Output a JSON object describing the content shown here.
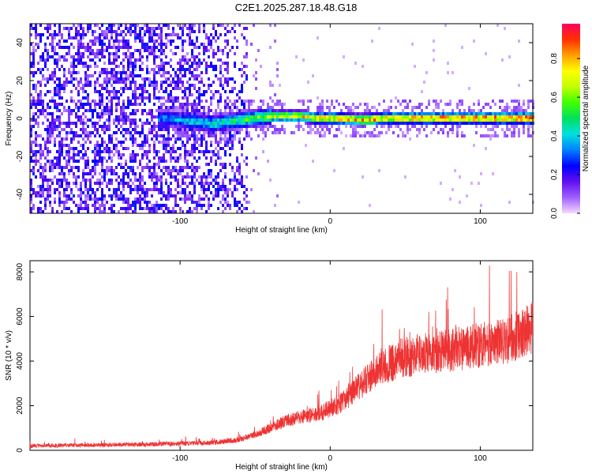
{
  "title": "C2E1.2025.287.18.48.G18",
  "chart_data": [
    {
      "type": "heatmap",
      "xlabel": "Height of straight line (km)",
      "ylabel": "Frequency (Hz)",
      "xlim": [
        -200,
        135
      ],
      "ylim": [
        -50,
        50
      ],
      "xticks": [
        -100,
        0,
        100
      ],
      "yticks": [
        -40,
        -20,
        0,
        20,
        40
      ],
      "colorbar": {
        "label": "Normalized spectral amplitude",
        "range": [
          0,
          0.98
        ],
        "ticks": [
          0.0,
          0.2,
          0.4,
          0.6,
          0.8
        ],
        "colormap": [
          "#f4d8ff",
          "#a060ff",
          "#6010f0",
          "#0000ff",
          "#0080ff",
          "#00e0e0",
          "#00e060",
          "#40ff00",
          "#c0ff00",
          "#ffff00",
          "#ffa000",
          "#ff3000",
          "#ff0060"
        ]
      },
      "signal_track": {
        "x": [
          -110,
          -100,
          -90,
          -80,
          -70,
          -60,
          -50,
          -40,
          -30,
          -20,
          -10,
          0,
          20,
          40,
          60,
          80,
          100,
          120,
          135
        ],
        "y": [
          1,
          0,
          -1,
          -2,
          -1,
          0,
          1,
          2,
          2,
          2,
          1,
          1,
          0,
          1,
          1,
          1,
          1,
          1,
          1
        ],
        "amplitude": [
          0.35,
          0.4,
          0.45,
          0.45,
          0.5,
          0.55,
          0.6,
          0.7,
          0.75,
          0.8,
          0.8,
          0.82,
          0.85,
          0.85,
          0.88,
          0.88,
          0.9,
          0.9,
          0.9
        ]
      },
      "noise_region_x": [
        -200,
        -55
      ]
    },
    {
      "type": "line",
      "xlabel": "Height of straight line (km)",
      "ylabel": "SNR (10 * v/v)",
      "xlim": [
        -200,
        135
      ],
      "ylim": [
        0,
        8500
      ],
      "xticks": [
        -100,
        0,
        100
      ],
      "yticks": [
        0,
        2000,
        4000,
        6000,
        8000
      ],
      "series": [
        {
          "color": "#ee3333",
          "x": [
            -200,
            -180,
            -160,
            -140,
            -120,
            -100,
            -90,
            -80,
            -70,
            -60,
            -50,
            -40,
            -30,
            -20,
            -10,
            -5,
            0,
            5,
            10,
            20,
            30,
            40,
            50,
            60,
            70,
            80,
            90,
            100,
            110,
            120,
            130,
            135
          ],
          "y": [
            200,
            220,
            230,
            250,
            270,
            300,
            320,
            340,
            400,
            500,
            700,
            1000,
            1300,
            1500,
            1600,
            1700,
            1900,
            2000,
            2300,
            2900,
            3500,
            3900,
            4200,
            4300,
            4400,
            4500,
            4600,
            4700,
            4800,
            5000,
            5300,
            5500
          ]
        }
      ]
    }
  ]
}
